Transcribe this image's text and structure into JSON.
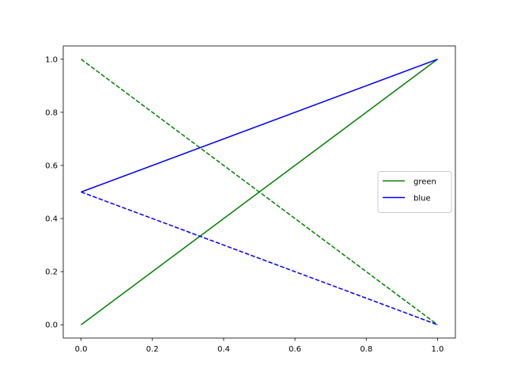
{
  "chart_data": {
    "type": "line",
    "x": [
      0,
      1
    ],
    "series": [
      {
        "name": "green",
        "color": "green",
        "linestyle": "solid",
        "values": [
          0,
          1
        ]
      },
      {
        "color": "green",
        "linestyle": "dashed",
        "values": [
          1,
          0
        ]
      },
      {
        "name": "blue",
        "color": "blue",
        "linestyle": "solid",
        "values": [
          0.5,
          1
        ]
      },
      {
        "color": "blue",
        "linestyle": "dashed",
        "values": [
          0.5,
          0
        ]
      }
    ],
    "xlim": [
      -0.05,
      1.05
    ],
    "ylim": [
      -0.05,
      1.05
    ],
    "xticks": [
      {
        "value": 0,
        "label": "0.0"
      },
      0.2,
      0.4,
      0.6,
      0.8,
      {
        "value": 1,
        "label": "1.0"
      }
    ],
    "yticks": [
      {
        "value": 0,
        "label": "0.0"
      },
      0.2,
      0.4,
      0.6,
      0.8,
      {
        "value": 1,
        "label": "1.0"
      }
    ],
    "legend": "center right"
  }
}
